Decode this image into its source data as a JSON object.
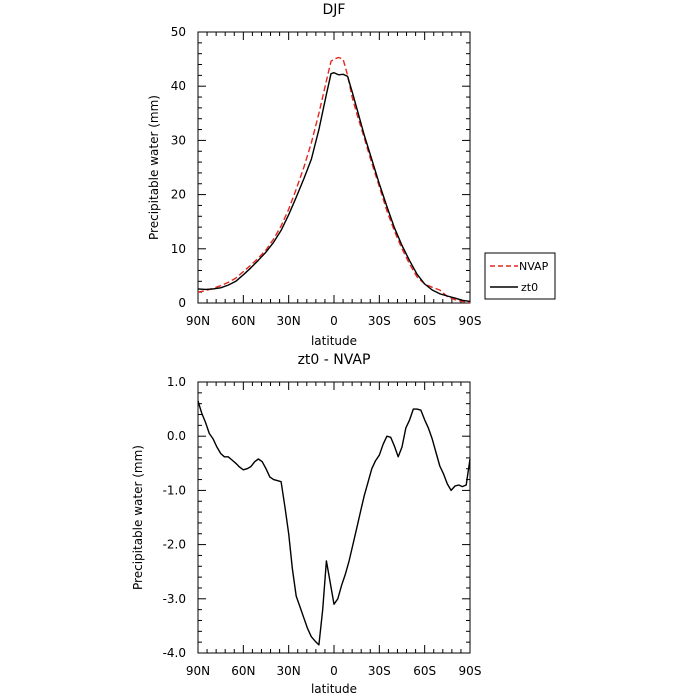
{
  "chart_data": [
    {
      "type": "line",
      "title": "DJF",
      "xlabel": "latitude",
      "ylabel": "Precipitable water (mm)",
      "xlim": [
        -90,
        90
      ],
      "ylim": [
        0,
        50
      ],
      "x_tick_values": [
        -90,
        -60,
        -30,
        0,
        30,
        60,
        90
      ],
      "x_tick_labels": [
        "90N",
        "60N",
        "30N",
        "0",
        "30S",
        "60S",
        "90S"
      ],
      "y_tick_values": [
        0,
        10,
        20,
        30,
        40,
        50
      ],
      "y_tick_labels": [
        "0",
        "10",
        "20",
        "30",
        "40",
        "50"
      ],
      "grid": false,
      "legend_position": "right",
      "series": [
        {
          "name": "NVAP",
          "color": "#e8261d",
          "dash": "dashed",
          "x": [
            -90,
            -85,
            -80,
            -75,
            -70,
            -65,
            -60,
            -55,
            -50,
            -45,
            -40,
            -35,
            -30,
            -25,
            -20,
            -15,
            -10,
            -5,
            -2,
            0,
            3,
            6,
            9,
            12,
            15,
            20,
            25,
            30,
            35,
            40,
            45,
            50,
            55,
            60,
            65,
            70,
            75,
            80,
            85,
            90
          ],
          "y": [
            2.0,
            2.3,
            2.7,
            3.2,
            3.8,
            4.6,
            5.8,
            7.0,
            8.3,
            9.8,
            11.8,
            14.2,
            17.3,
            21.0,
            25.0,
            29.5,
            35.0,
            41.0,
            44.6,
            45.0,
            45.3,
            45.0,
            42.0,
            38.0,
            35.0,
            30.5,
            25.8,
            21.5,
            17.0,
            13.3,
            10.0,
            7.2,
            4.8,
            3.5,
            2.9,
            2.4,
            1.2,
            0.6,
            0.3,
            0.1
          ]
        },
        {
          "name": "zt0",
          "color": "#000000",
          "dash": "solid",
          "x": [
            -90,
            -85,
            -80,
            -75,
            -70,
            -65,
            -60,
            -55,
            -50,
            -45,
            -40,
            -35,
            -30,
            -25,
            -20,
            -15,
            -10,
            -5,
            -2,
            0,
            3,
            6,
            9,
            12,
            15,
            20,
            25,
            30,
            35,
            40,
            45,
            50,
            55,
            60,
            65,
            70,
            75,
            80,
            85,
            90
          ],
          "y": [
            2.6,
            2.5,
            2.6,
            2.8,
            3.3,
            4.0,
            5.2,
            6.5,
            7.9,
            9.4,
            11.2,
            13.4,
            16.3,
            19.5,
            22.9,
            26.5,
            32.0,
            38.5,
            42.3,
            42.5,
            42.1,
            42.2,
            41.8,
            39.0,
            36.0,
            31.0,
            26.5,
            22.0,
            17.8,
            13.9,
            10.6,
            7.8,
            5.3,
            3.5,
            2.4,
            1.7,
            1.3,
            0.9,
            0.5,
            0.3
          ]
        }
      ]
    },
    {
      "type": "line",
      "title": "zt0 - NVAP",
      "xlabel": "latitude",
      "ylabel": "Precipitable water (mm)",
      "xlim": [
        -90,
        90
      ],
      "ylim": [
        -4.0,
        1.0
      ],
      "x_tick_values": [
        -90,
        -60,
        -30,
        0,
        30,
        60,
        90
      ],
      "x_tick_labels": [
        "90N",
        "60N",
        "30N",
        "0",
        "30S",
        "60S",
        "90S"
      ],
      "y_tick_values": [
        -4.0,
        -3.0,
        -2.0,
        -1.0,
        0.0,
        1.0
      ],
      "y_tick_labels": [
        "-4.0",
        "-3.0",
        "-2.0",
        "-1.0",
        "0.0",
        "1.0"
      ],
      "grid": false,
      "series": [
        {
          "color": "#000000",
          "dash": "solid",
          "x": [
            -90,
            -87.5,
            -85,
            -82.5,
            -80,
            -77.5,
            -75,
            -72.5,
            -70,
            -67.5,
            -65,
            -62.5,
            -60,
            -57.5,
            -55,
            -52.5,
            -50,
            -47.5,
            -45,
            -42.5,
            -40,
            -37.5,
            -35,
            -32.5,
            -30,
            -27.5,
            -25,
            -22.5,
            -20,
            -17.5,
            -15,
            -12.5,
            -10,
            -7.5,
            -5,
            -2.5,
            0,
            2.5,
            5,
            7.5,
            10,
            12.5,
            15,
            17.5,
            20,
            22.5,
            25,
            27.5,
            30,
            32.5,
            35,
            37.5,
            40,
            42.5,
            45,
            47.5,
            50,
            52.5,
            55,
            57.5,
            60,
            62.5,
            65,
            67.5,
            70,
            72.5,
            75,
            77.5,
            80,
            82.5,
            85,
            87.5,
            90
          ],
          "y": [
            0.65,
            0.42,
            0.25,
            0.05,
            -0.05,
            -0.2,
            -0.32,
            -0.38,
            -0.38,
            -0.44,
            -0.5,
            -0.57,
            -0.62,
            -0.6,
            -0.56,
            -0.47,
            -0.42,
            -0.47,
            -0.6,
            -0.75,
            -0.8,
            -0.82,
            -0.84,
            -1.3,
            -1.8,
            -2.45,
            -2.95,
            -3.15,
            -3.35,
            -3.55,
            -3.7,
            -3.78,
            -3.85,
            -3.2,
            -2.3,
            -2.7,
            -3.1,
            -3.0,
            -2.75,
            -2.55,
            -2.3,
            -2.0,
            -1.7,
            -1.4,
            -1.1,
            -0.85,
            -0.6,
            -0.45,
            -0.35,
            -0.15,
            0.0,
            -0.02,
            -0.18,
            -0.38,
            -0.2,
            0.15,
            0.3,
            0.5,
            0.5,
            0.48,
            0.3,
            0.15,
            -0.05,
            -0.3,
            -0.55,
            -0.7,
            -0.88,
            -1.0,
            -0.92,
            -0.9,
            -0.93,
            -0.9,
            -0.42
          ]
        }
      ]
    }
  ],
  "legend": {
    "entries": [
      "NVAP",
      "zt0"
    ]
  }
}
